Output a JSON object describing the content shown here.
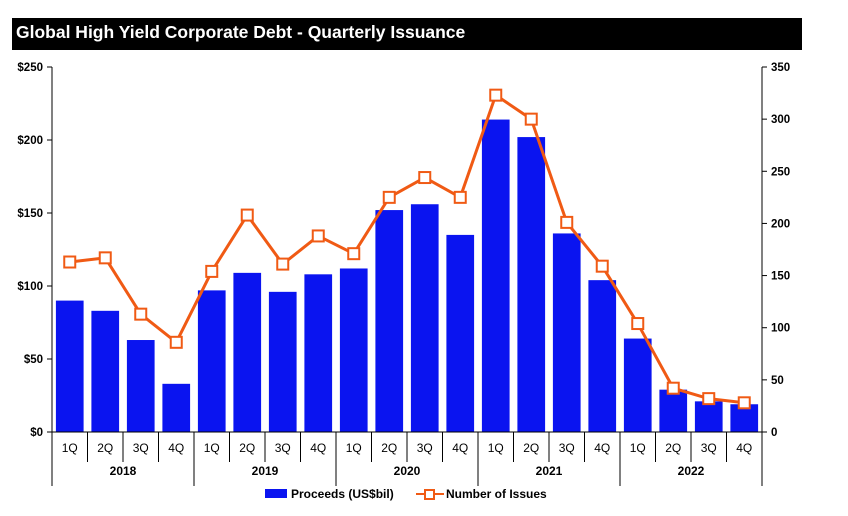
{
  "chart_data": {
    "type": "bar",
    "title": "Global High Yield Corporate Debt - Quarterly Issuance",
    "categories": [
      "1Q",
      "2Q",
      "3Q",
      "4Q",
      "1Q",
      "2Q",
      "3Q",
      "4Q",
      "1Q",
      "2Q",
      "3Q",
      "4Q",
      "1Q",
      "2Q",
      "3Q",
      "4Q",
      "1Q",
      "2Q",
      "3Q",
      "4Q"
    ],
    "years": [
      "2018",
      "2019",
      "2020",
      "2021",
      "2022"
    ],
    "series": [
      {
        "name": "Proceeds (US$bil)",
        "type": "bar",
        "axis": "left",
        "color": "#0a14f0",
        "values": [
          90,
          83,
          63,
          33,
          97,
          109,
          96,
          108,
          112,
          152,
          156,
          135,
          214,
          202,
          136,
          104,
          64,
          29,
          21,
          19
        ]
      },
      {
        "name": "Number of Issues",
        "type": "line",
        "axis": "right",
        "color": "#f05a14",
        "values": [
          163,
          167,
          113,
          86,
          154,
          208,
          161,
          188,
          171,
          225,
          244,
          225,
          323,
          300,
          201,
          159,
          104,
          42,
          32,
          28
        ]
      }
    ],
    "y_left": {
      "min": 0,
      "max": 250,
      "ticks": [
        "$0",
        "$50",
        "$100",
        "$150",
        "$200",
        "$250"
      ]
    },
    "y_right": {
      "min": 0,
      "max": 350,
      "ticks": [
        "0",
        "50",
        "100",
        "150",
        "200",
        "250",
        "300",
        "350"
      ]
    },
    "legend_position": "bottom",
    "grid": false
  }
}
